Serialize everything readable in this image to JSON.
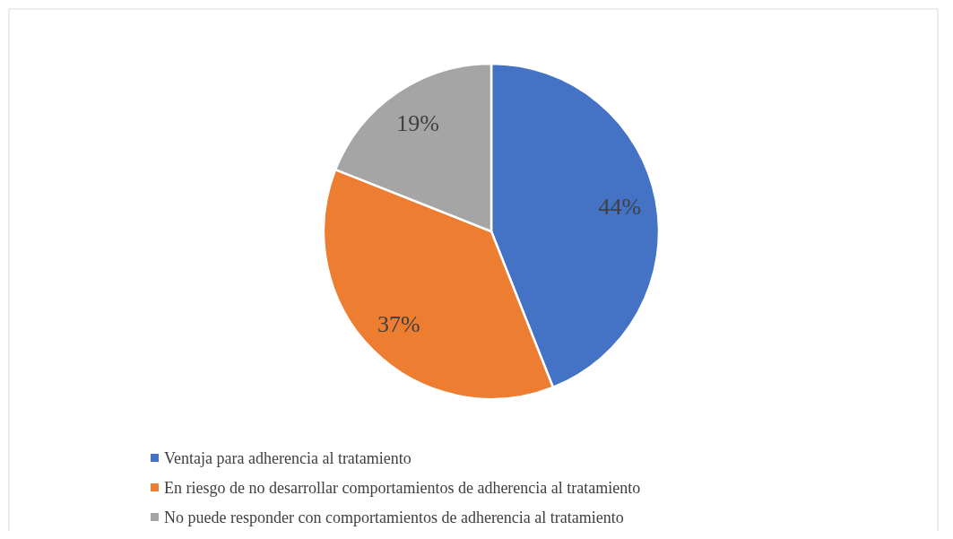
{
  "chart_data": {
    "type": "pie",
    "categories": [
      "Ventaja para adherencia al tratamiento",
      "En riesgo de no desarrollar comportamientos de adherencia al tratamiento",
      "No puede responder con comportamientos de adherencia al tratamiento"
    ],
    "values": [
      44,
      37,
      19
    ],
    "colors": [
      "#4472c4",
      "#ed7d31",
      "#a5a5a5"
    ],
    "value_labels": [
      "44%",
      "37%",
      "19%"
    ],
    "legend": "bottom"
  }
}
